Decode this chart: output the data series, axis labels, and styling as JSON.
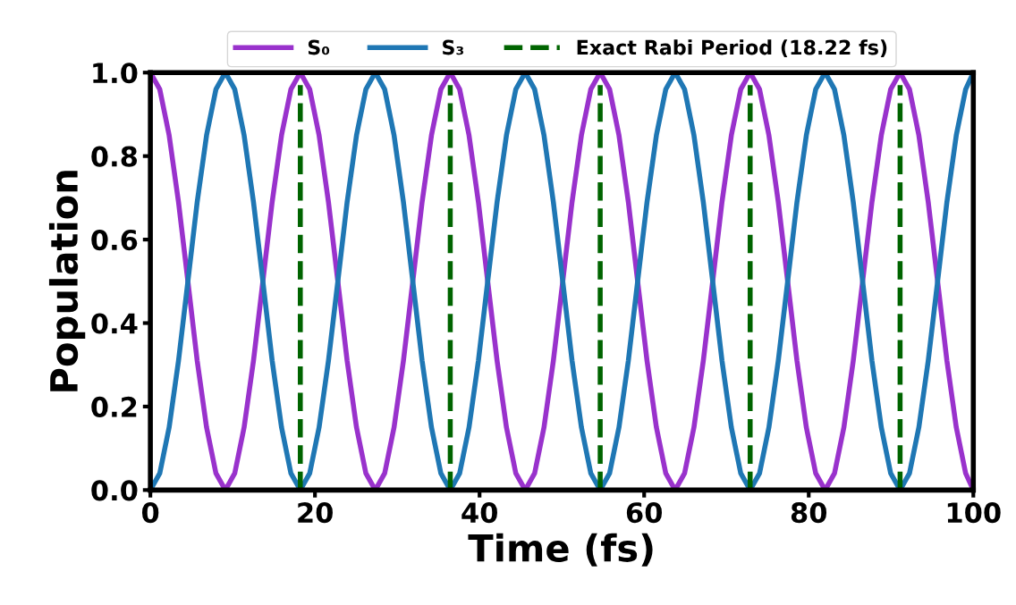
{
  "chart_data": {
    "type": "line",
    "xlabel": "Time (fs)",
    "ylabel": "Population",
    "x": [
      0,
      1.14,
      2.28,
      3.42,
      4.56,
      5.69,
      6.83,
      7.97,
      9.11,
      10.25,
      11.39,
      12.53,
      13.67,
      14.8,
      15.94,
      17.08,
      18.22,
      19.36,
      20.5,
      21.64,
      22.78,
      23.91,
      25.05,
      26.19,
      27.33,
      28.47,
      29.61,
      30.75,
      31.89,
      33.02,
      34.16,
      35.3,
      36.44,
      37.58,
      38.72,
      39.86,
      40.99,
      42.13,
      43.27,
      44.41,
      45.55,
      46.69,
      47.83,
      48.97,
      50.11,
      51.24,
      52.38,
      53.52,
      54.66,
      55.8,
      56.94,
      58.08,
      59.21,
      60.35,
      61.49,
      62.63,
      63.77,
      64.91,
      66.05,
      67.19,
      68.33,
      69.46,
      70.6,
      71.74,
      72.88,
      74.02,
      75.16,
      76.3,
      77.44,
      78.57,
      79.71,
      80.85,
      81.99,
      83.13,
      84.27,
      85.41,
      86.55,
      87.68,
      88.82,
      89.96,
      91.1,
      92.24,
      93.38,
      94.52,
      95.66,
      96.79,
      97.93,
      99.07,
      100
    ],
    "series": [
      {
        "name": "S₀",
        "color": "#9932cc",
        "values": [
          1,
          0.96,
          0.85,
          0.69,
          0.5,
          0.31,
          0.15,
          0.04,
          0,
          0.04,
          0.15,
          0.31,
          0.5,
          0.69,
          0.85,
          0.96,
          1,
          0.96,
          0.85,
          0.69,
          0.5,
          0.31,
          0.15,
          0.04,
          0,
          0.04,
          0.15,
          0.31,
          0.5,
          0.69,
          0.85,
          0.96,
          1,
          0.96,
          0.85,
          0.69,
          0.5,
          0.31,
          0.15,
          0.04,
          0,
          0.04,
          0.15,
          0.31,
          0.5,
          0.69,
          0.85,
          0.96,
          1,
          0.96,
          0.85,
          0.69,
          0.5,
          0.31,
          0.15,
          0.04,
          0,
          0.04,
          0.15,
          0.31,
          0.5,
          0.69,
          0.85,
          0.96,
          1,
          0.96,
          0.85,
          0.69,
          0.5,
          0.31,
          0.15,
          0.04,
          0,
          0.04,
          0.15,
          0.31,
          0.5,
          0.69,
          0.85,
          0.96,
          1,
          0.96,
          0.85,
          0.69,
          0.5,
          0.31,
          0.15,
          0.04,
          0
        ]
      },
      {
        "name": "S₃",
        "color": "#1f77b4",
        "values": [
          0,
          0.04,
          0.15,
          0.31,
          0.5,
          0.69,
          0.85,
          0.96,
          1,
          0.96,
          0.85,
          0.69,
          0.5,
          0.31,
          0.15,
          0.04,
          0,
          0.04,
          0.15,
          0.31,
          0.5,
          0.69,
          0.85,
          0.96,
          1,
          0.96,
          0.85,
          0.69,
          0.5,
          0.31,
          0.15,
          0.04,
          0,
          0.04,
          0.15,
          0.31,
          0.5,
          0.69,
          0.85,
          0.96,
          1,
          0.96,
          0.85,
          0.69,
          0.5,
          0.31,
          0.15,
          0.04,
          0,
          0.04,
          0.15,
          0.31,
          0.5,
          0.69,
          0.85,
          0.96,
          1,
          0.96,
          0.85,
          0.69,
          0.5,
          0.31,
          0.15,
          0.04,
          0,
          0.04,
          0.15,
          0.31,
          0.5,
          0.69,
          0.85,
          0.96,
          1,
          0.96,
          0.85,
          0.69,
          0.5,
          0.31,
          0.15,
          0.04,
          0,
          0.04,
          0.15,
          0.31,
          0.5,
          0.69,
          0.85,
          0.96,
          1
        ]
      }
    ],
    "ref_lines": [
      {
        "axis": "x",
        "value": 18.22,
        "label": "Exact Rabi Period (18.22 fs)",
        "color": "#006400",
        "line_style": "dashed"
      },
      {
        "axis": "x",
        "value": 36.44,
        "label": null,
        "color": "#006400",
        "line_style": "dashed"
      },
      {
        "axis": "x",
        "value": 54.66,
        "label": null,
        "color": "#006400",
        "line_style": "dashed"
      },
      {
        "axis": "x",
        "value": 72.88,
        "label": null,
        "color": "#006400",
        "line_style": "dashed"
      },
      {
        "axis": "x",
        "value": 91.1,
        "label": null,
        "color": "#006400",
        "line_style": "dashed"
      }
    ],
    "xlim": [
      0,
      100
    ],
    "xticks": [
      0,
      20,
      40,
      60,
      80,
      100
    ],
    "ylim": [
      0,
      1
    ],
    "yticks": [
      {
        "value": 0,
        "label": "0.0"
      },
      {
        "value": 0.2,
        "label": "0.2"
      },
      {
        "value": 0.4,
        "label": "0.4"
      },
      {
        "value": 0.6,
        "label": "0.6"
      },
      {
        "value": 0.8,
        "label": "0.8"
      },
      {
        "value": 1,
        "label": "1.0"
      }
    ],
    "grid": false,
    "legend": "top",
    "marker": "none",
    "line_style": "solid"
  }
}
